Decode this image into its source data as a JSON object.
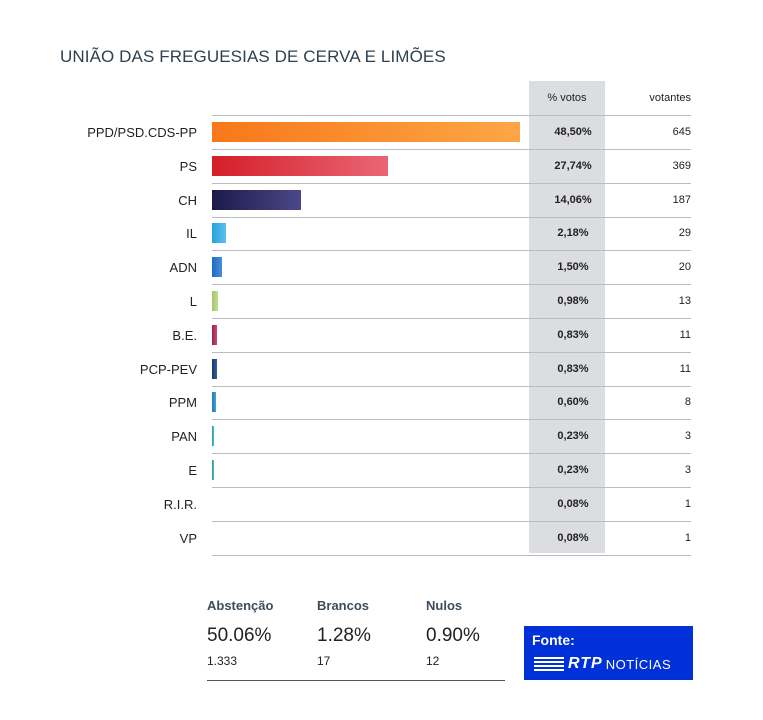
{
  "title": "UNIÃO DAS FREGUESIAS DE CERVA E LIMÕES",
  "columns": {
    "percent": "% votos",
    "voters": "votantes"
  },
  "chart_data": {
    "type": "bar",
    "orientation": "horizontal",
    "categories": [
      "PPD/PSD.CDS-PP",
      "PS",
      "CH",
      "IL",
      "ADN",
      "L",
      "B.E.",
      "PCP-PEV",
      "PPM",
      "PAN",
      "E",
      "R.I.R.",
      "VP"
    ],
    "values": [
      48.5,
      27.74,
      14.06,
      2.18,
      1.5,
      0.98,
      0.83,
      0.83,
      0.6,
      0.23,
      0.23,
      0.08,
      0.08
    ],
    "percent_labels": [
      "48,50%",
      "27,74%",
      "14,06%",
      "2,18%",
      "1,50%",
      "0,98%",
      "0,83%",
      "0,83%",
      "0,60%",
      "0,23%",
      "0,23%",
      "0,08%",
      "0,08%"
    ],
    "voters": [
      "645",
      "369",
      "187",
      "29",
      "20",
      "13",
      "11",
      "11",
      "8",
      "3",
      "3",
      "1",
      "1"
    ],
    "colors": [
      "#f7781a",
      "#d41f2a",
      "#1c1a4a",
      "#22a3dd",
      "#1c6bc7",
      "#a4c56a",
      "#9e1f4e",
      "#15386f",
      "#1d7bb8",
      "#1e9bb0",
      "#2a9a9c",
      "#d04a9a",
      "#2e6bbd"
    ],
    "gradient_to": [
      "#fda646",
      "#ea6674",
      "#4a4888",
      "#5fc0ea",
      "#4a8ed8",
      "#c4dc96",
      "#c64a7a",
      "#3a5e96",
      "#4aa0d4",
      "#56bccc",
      "#56bcbc",
      "#e07ab8",
      "#5a8ed4"
    ]
  },
  "summary": {
    "abstention": {
      "label": "Abstenção",
      "percent": "50.06%",
      "count": "1.333"
    },
    "blank": {
      "label": "Brancos",
      "percent": "1.28%",
      "count": "17"
    },
    "null": {
      "label": "Nulos",
      "percent": "0.90%",
      "count": "12"
    }
  },
  "source": {
    "label": "Fonte:",
    "brand": "RTP",
    "brand_sub": "NOTÍCIAS"
  }
}
